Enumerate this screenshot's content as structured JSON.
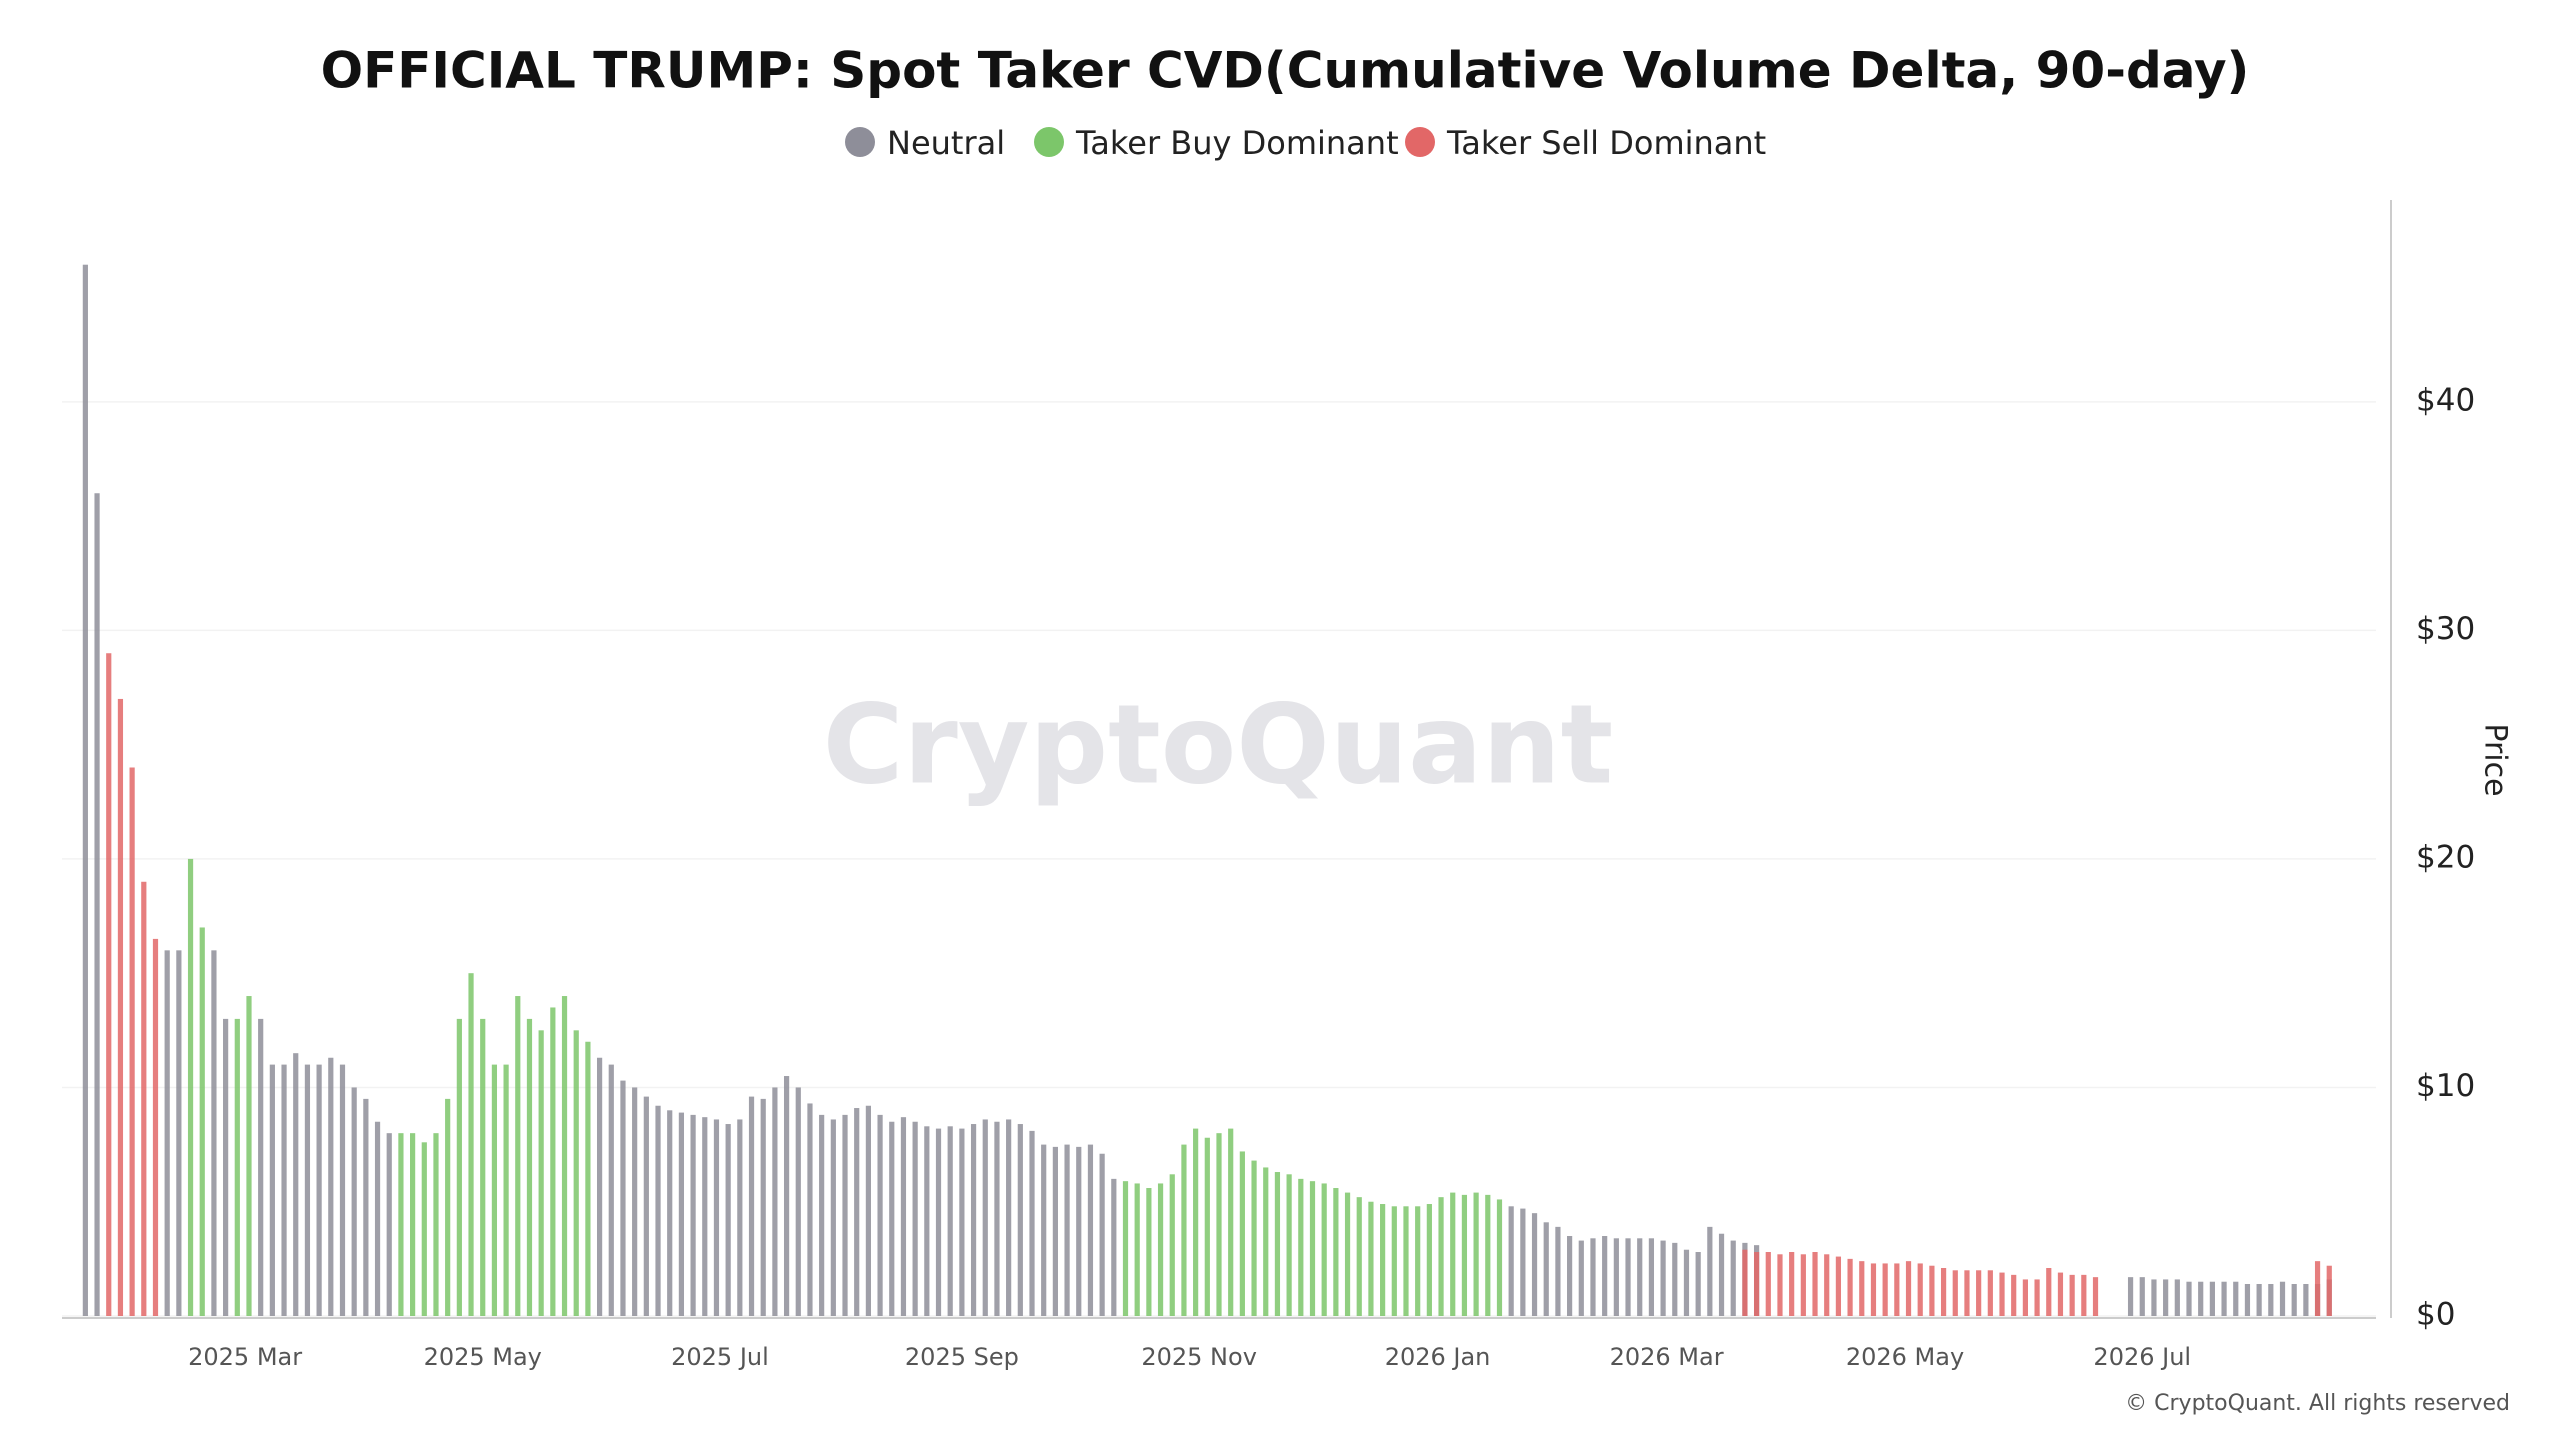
{
  "chart_data": {
    "type": "bar",
    "title": "OFFICIAL TRUMP: Spot Taker CVD(Cumulative Volume Delta, 90-day)",
    "watermark": "CryptoQuant",
    "copyright": "© CryptoQuant. All rights reserved",
    "y_label": "Price",
    "xlim": [
      -2,
      196
    ],
    "xticks": [
      {
        "value": 13.67,
        "label": "2025 Mar"
      },
      {
        "value": 34,
        "label": "2025 May"
      },
      {
        "value": 54.3,
        "label": "2025 Jul"
      },
      {
        "value": 75,
        "label": "2025 Sep"
      },
      {
        "value": 95.3,
        "label": "2025 Nov"
      },
      {
        "value": 115.7,
        "label": "2026 Jan"
      },
      {
        "value": 135.3,
        "label": "2026 Mar"
      },
      {
        "value": 155.7,
        "label": "2026 May"
      },
      {
        "value": 176,
        "label": "2026 Jul"
      }
    ],
    "ylim": [
      0,
      48
    ],
    "yticks": [
      {
        "value": 0,
        "label": "$0"
      },
      {
        "value": 10,
        "label": "$10"
      },
      {
        "value": 20,
        "label": "$20"
      },
      {
        "value": 30,
        "label": "$30"
      },
      {
        "value": 40,
        "label": "$40"
      }
    ],
    "grid": true,
    "series": [
      {
        "name": "Neutral",
        "color": "#8e8e99",
        "values": [
          46,
          36,
          null,
          null,
          null,
          null,
          null,
          16,
          16,
          null,
          null,
          16,
          13,
          null,
          null,
          13,
          11,
          11,
          11.5,
          11,
          11,
          11.3,
          11,
          10,
          9.5,
          8.5,
          8,
          null,
          null,
          null,
          null,
          null,
          null,
          null,
          null,
          null,
          null,
          null,
          null,
          null,
          null,
          null,
          null,
          null,
          11.3,
          11,
          10.3,
          10,
          9.6,
          9.2,
          9,
          8.9,
          8.8,
          8.7,
          8.6,
          8.4,
          8.6,
          9.6,
          9.5,
          10,
          10.5,
          10,
          9.3,
          8.8,
          8.6,
          8.8,
          9.1,
          9.2,
          8.8,
          8.5,
          8.7,
          8.5,
          8.3,
          8.2,
          8.3,
          8.2,
          8.4,
          8.6,
          8.5,
          8.6,
          8.4,
          8.1,
          7.5,
          7.4,
          7.5,
          7.4,
          7.5,
          7.1,
          6,
          null,
          null,
          null,
          null,
          null,
          null,
          null,
          null,
          null,
          null,
          null,
          null,
          null,
          null,
          null,
          null,
          null,
          null,
          null,
          null,
          null,
          null,
          null,
          null,
          null,
          null,
          null,
          null,
          null,
          null,
          null,
          null,
          null,
          4.8,
          4.7,
          4.5,
          4.1,
          3.9,
          3.5,
          3.3,
          3.4,
          3.5,
          3.4,
          3.4,
          3.4,
          3.4,
          3.3,
          3.2,
          2.9,
          2.8,
          3.9,
          3.6,
          3.3,
          3.2,
          3.1,
          null,
          null,
          null,
          null,
          null,
          null,
          null,
          null,
          null,
          null,
          null,
          null,
          null,
          null,
          null,
          null,
          null,
          null,
          null,
          null,
          null,
          null,
          null,
          null,
          null,
          null,
          null,
          null,
          null,
          null,
          null,
          1.7,
          1.7,
          1.6,
          1.6,
          1.6,
          1.5,
          1.5,
          1.5,
          1.5,
          1.5,
          1.4,
          1.4,
          1.4,
          1.5,
          1.4,
          1.4,
          1.4,
          1.6,
          null,
          null
        ]
      },
      {
        "name": "Taker Buy Dominant",
        "color": "#7cc66a",
        "values": [
          null,
          null,
          null,
          null,
          null,
          null,
          null,
          null,
          null,
          20,
          17,
          null,
          null,
          13,
          14,
          null,
          null,
          null,
          null,
          null,
          null,
          null,
          null,
          null,
          null,
          null,
          null,
          8,
          8,
          7.6,
          8,
          9.5,
          13,
          15,
          13,
          11,
          11,
          14,
          13,
          12.5,
          13.5,
          14,
          12.5,
          12,
          null,
          null,
          null,
          null,
          null,
          null,
          null,
          null,
          null,
          null,
          null,
          null,
          null,
          null,
          null,
          null,
          null,
          null,
          null,
          null,
          null,
          null,
          null,
          null,
          null,
          null,
          null,
          null,
          null,
          null,
          null,
          null,
          null,
          null,
          null,
          null,
          null,
          null,
          null,
          null,
          null,
          null,
          null,
          null,
          null,
          5.9,
          5.8,
          5.6,
          5.8,
          6.2,
          7.5,
          8.2,
          7.8,
          8,
          8.2,
          7.2,
          6.8,
          6.5,
          6.3,
          6.2,
          6,
          5.9,
          5.8,
          5.6,
          5.4,
          5.2,
          5,
          4.9,
          4.8,
          4.8,
          4.8,
          4.9,
          5.2,
          5.4,
          5.3,
          5.4,
          5.3,
          5.1,
          null,
          null,
          null,
          null,
          null,
          null,
          null,
          null,
          null,
          null,
          null,
          null,
          null,
          null,
          null,
          null,
          null,
          null,
          null,
          null,
          null,
          null,
          null,
          null,
          null,
          null,
          null,
          null,
          null,
          null,
          null,
          null,
          null,
          null,
          null,
          null,
          null,
          null,
          null,
          null,
          null,
          null,
          null,
          null,
          null,
          null,
          null,
          null,
          null,
          null,
          null,
          null,
          null,
          null,
          null,
          null,
          null,
          null,
          null,
          null,
          null,
          null,
          null,
          null,
          null,
          null,
          null,
          null,
          null,
          null,
          null,
          null,
          null
        ]
      },
      {
        "name": "Taker Sell Dominant",
        "color": "#e26767",
        "values": [
          null,
          null,
          29,
          27,
          24,
          19,
          16.5,
          null,
          null,
          null,
          null,
          null,
          null,
          null,
          null,
          null,
          null,
          null,
          null,
          null,
          null,
          null,
          null,
          null,
          null,
          null,
          null,
          null,
          null,
          null,
          null,
          null,
          null,
          null,
          null,
          null,
          null,
          null,
          null,
          null,
          null,
          null,
          null,
          null,
          null,
          null,
          null,
          null,
          null,
          null,
          null,
          null,
          null,
          null,
          null,
          null,
          null,
          null,
          null,
          null,
          null,
          null,
          null,
          null,
          null,
          null,
          null,
          null,
          null,
          null,
          null,
          null,
          null,
          null,
          null,
          null,
          null,
          null,
          null,
          null,
          null,
          null,
          null,
          null,
          null,
          null,
          null,
          null,
          null,
          null,
          null,
          null,
          null,
          null,
          null,
          null,
          null,
          null,
          null,
          null,
          null,
          null,
          null,
          null,
          null,
          null,
          null,
          null,
          null,
          null,
          null,
          null,
          null,
          null,
          null,
          null,
          null,
          null,
          null,
          null,
          null,
          null,
          null,
          null,
          null,
          null,
          null,
          null,
          null,
          null,
          null,
          null,
          null,
          null,
          null,
          null,
          null,
          null,
          null,
          null,
          null,
          null,
          2.9,
          2.8,
          2.8,
          2.7,
          2.8,
          2.7,
          2.8,
          2.7,
          2.6,
          2.5,
          2.4,
          2.3,
          2.3,
          2.3,
          2.4,
          2.3,
          2.2,
          2.1,
          2,
          2,
          2,
          2,
          1.9,
          1.8,
          1.6,
          1.6,
          2.1,
          1.9,
          1.8,
          1.8,
          1.7,
          null,
          null,
          null,
          null,
          null,
          null,
          null,
          null,
          null,
          null,
          null,
          null,
          null,
          null,
          null,
          null,
          null,
          null,
          2.4,
          2.2
        ]
      }
    ]
  }
}
